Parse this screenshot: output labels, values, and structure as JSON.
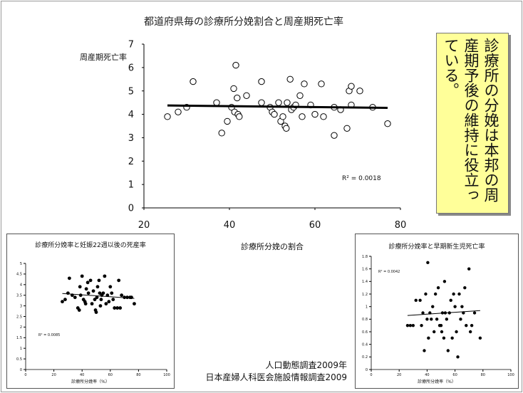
{
  "main": {
    "title": "都道府県毎の診療所分娩割合と周産期死亡率",
    "ylabel": "周産期死亡率",
    "xlabel": "診療所分娩の割合",
    "r2": "R² = 0.0018"
  },
  "callout": {
    "text": "診療所の分娩は本邦の周産期予後の維持に役立っている。"
  },
  "inset_left": {
    "title": "診療所分娩率と妊娠22週以後の死産率",
    "xlabel": "診療所分娩率（%）",
    "r2": "R² = 0.0085"
  },
  "inset_right": {
    "title": "診療所分娩率と早期新生児死亡率",
    "xlabel": "診療所分娩率（%）",
    "r2": "R² = 0.0042"
  },
  "sources": {
    "line1": "人口動態調査2009年",
    "line2": "日本産婦人科医会施設情報調査2009"
  },
  "colors": {
    "callout_bg": "#ffff99",
    "marker": "#000000"
  },
  "chart_data": [
    {
      "type": "scatter",
      "title": "都道府県毎の診療所分娩割合と周産期死亡率",
      "xlabel": "診療所分娩の割合",
      "ylabel": "周産期死亡率",
      "xlim": [
        20,
        80
      ],
      "ylim": [
        0,
        7
      ],
      "xticks": [
        20,
        40,
        60,
        80
      ],
      "yticks": [
        0,
        1,
        2,
        3,
        4,
        5,
        6,
        7
      ],
      "marker": "open-circle",
      "trendline": {
        "slope": -0.002,
        "intercept": 4.43
      },
      "annotation": "R² = 0.0018",
      "points": [
        [
          25.5,
          3.9
        ],
        [
          28,
          4.1
        ],
        [
          30,
          4.3
        ],
        [
          31.5,
          5.4
        ],
        [
          37,
          4.5
        ],
        [
          38.2,
          3.2
        ],
        [
          39.5,
          3.7
        ],
        [
          40.5,
          4.3
        ],
        [
          41,
          5.1
        ],
        [
          41.2,
          4.1
        ],
        [
          41.5,
          6.1
        ],
        [
          41.8,
          4.7
        ],
        [
          42,
          4.0
        ],
        [
          42.3,
          3.9
        ],
        [
          44,
          4.8
        ],
        [
          47.5,
          5.4
        ],
        [
          47.5,
          4.5
        ],
        [
          49.5,
          4.3
        ],
        [
          50,
          4.1
        ],
        [
          50.5,
          4.0
        ],
        [
          51.5,
          4.5
        ],
        [
          52,
          3.7
        ],
        [
          52.5,
          3.9
        ],
        [
          53,
          3.5
        ],
        [
          53.3,
          3.4
        ],
        [
          53.5,
          4.5
        ],
        [
          54.2,
          5.5
        ],
        [
          54.5,
          4.2
        ],
        [
          55,
          4.3
        ],
        [
          55.5,
          4.4
        ],
        [
          56.5,
          4.8
        ],
        [
          57,
          3.9
        ],
        [
          57.5,
          5.3
        ],
        [
          59,
          4.4
        ],
        [
          60,
          4.0
        ],
        [
          61.5,
          5.3
        ],
        [
          62,
          3.9
        ],
        [
          64.5,
          4.3
        ],
        [
          64.5,
          3.1
        ],
        [
          66,
          4.2
        ],
        [
          67.5,
          3.4
        ],
        [
          68,
          5.0
        ],
        [
          68.5,
          4.4
        ],
        [
          68.5,
          5.2
        ],
        [
          70.5,
          5.0
        ],
        [
          73.5,
          4.3
        ],
        [
          77,
          3.6
        ]
      ]
    },
    {
      "type": "scatter",
      "title": "診療所分娩率と妊娠22週以後の死産率",
      "xlabel": "診療所分娩率（%）",
      "xlim": [
        0,
        100
      ],
      "ylim": [
        0,
        5
      ],
      "xticks": [
        0,
        20,
        40,
        60,
        80,
        100
      ],
      "yticks": [
        0,
        0.5,
        1,
        1.5,
        2,
        2.5,
        3,
        3.5,
        4,
        4.5,
        5
      ],
      "marker": "filled-circle",
      "trendline": {
        "slope": -0.0045,
        "intercept": 3.7
      },
      "annotation": "R² = 0.0085",
      "points": [
        [
          26,
          3.2
        ],
        [
          28,
          3.3
        ],
        [
          30,
          3.6
        ],
        [
          31,
          4.3
        ],
        [
          33,
          3.5
        ],
        [
          35,
          3.4
        ],
        [
          37,
          2.9
        ],
        [
          38,
          2.8
        ],
        [
          38.5,
          3.9
        ],
        [
          39,
          3.5
        ],
        [
          40,
          4.4
        ],
        [
          41,
          3.3
        ],
        [
          42,
          3.2
        ],
        [
          42.5,
          3.1
        ],
        [
          43,
          3.8
        ],
        [
          44,
          4.1
        ],
        [
          44.5,
          3.6
        ],
        [
          46,
          4.2
        ],
        [
          47,
          3.1
        ],
        [
          48,
          3.7
        ],
        [
          49,
          3.3
        ],
        [
          49.5,
          2.8
        ],
        [
          50,
          2.7
        ],
        [
          50.5,
          3.4
        ],
        [
          51,
          3.9
        ],
        [
          52,
          4.2
        ],
        [
          52.5,
          3.6
        ],
        [
          53,
          3.0
        ],
        [
          53.5,
          3.3
        ],
        [
          54,
          3.5
        ],
        [
          55,
          3.6
        ],
        [
          56,
          4.4
        ],
        [
          57,
          3.1
        ],
        [
          58,
          3.5
        ],
        [
          59,
          3.2
        ],
        [
          60,
          3.9
        ],
        [
          61,
          3.6
        ],
        [
          62,
          3.3
        ],
        [
          63,
          2.9
        ],
        [
          65,
          2.9
        ],
        [
          66,
          4.2
        ],
        [
          67,
          2.9
        ],
        [
          68,
          3.5
        ],
        [
          70,
          3.4
        ],
        [
          72,
          3.4
        ],
        [
          74,
          3.4
        ],
        [
          75,
          3.4
        ],
        [
          77,
          3.1
        ]
      ]
    },
    {
      "type": "scatter",
      "title": "診療所分娩率と早期新生児死亡率",
      "xlabel": "診療所分娩率（%）",
      "xlim": [
        0,
        100
      ],
      "ylim": [
        0,
        1.8
      ],
      "xticks": [
        0,
        20,
        40,
        60,
        80,
        100
      ],
      "yticks": [
        0,
        0.2,
        0.4,
        0.6,
        0.8,
        1,
        1.2,
        1.4,
        1.6,
        1.8
      ],
      "marker": "filled-circle",
      "trendline": {
        "slope": 0.0015,
        "intercept": 0.82
      },
      "annotation": "R² = 0.0042",
      "points": [
        [
          26,
          0.7
        ],
        [
          28,
          0.7
        ],
        [
          30,
          0.7
        ],
        [
          32,
          1.1
        ],
        [
          35,
          1.1
        ],
        [
          36,
          0.7
        ],
        [
          37,
          0.9
        ],
        [
          38,
          0.3
        ],
        [
          39,
          1.2
        ],
        [
          40,
          0.8
        ],
        [
          40.5,
          1.7
        ],
        [
          41,
          0.5
        ],
        [
          42,
          0.9
        ],
        [
          43,
          0.8
        ],
        [
          44,
          1.0
        ],
        [
          45,
          0.6
        ],
        [
          46,
          1.2
        ],
        [
          47,
          0.8
        ],
        [
          48,
          1.3
        ],
        [
          49,
          0.7
        ],
        [
          50,
          0.7
        ],
        [
          50.5,
          0.6
        ],
        [
          51,
          0.9
        ],
        [
          52,
          0.5
        ],
        [
          52.5,
          1.4
        ],
        [
          53,
          0.9
        ],
        [
          54,
          0.8
        ],
        [
          55,
          0.3
        ],
        [
          56,
          0.9
        ],
        [
          57,
          1.1
        ],
        [
          58,
          0.5
        ],
        [
          59,
          1.2
        ],
        [
          60,
          1.0
        ],
        [
          61,
          0.6
        ],
        [
          62,
          0.2
        ],
        [
          63,
          1.2
        ],
        [
          64,
          0.8
        ],
        [
          65,
          1.0
        ],
        [
          66,
          0.9
        ],
        [
          67,
          1.3
        ],
        [
          68,
          0.7
        ],
        [
          70,
          1.6
        ],
        [
          71,
          0.6
        ],
        [
          72,
          0.7
        ],
        [
          74,
          0.9
        ],
        [
          78,
          0.5
        ]
      ]
    }
  ]
}
